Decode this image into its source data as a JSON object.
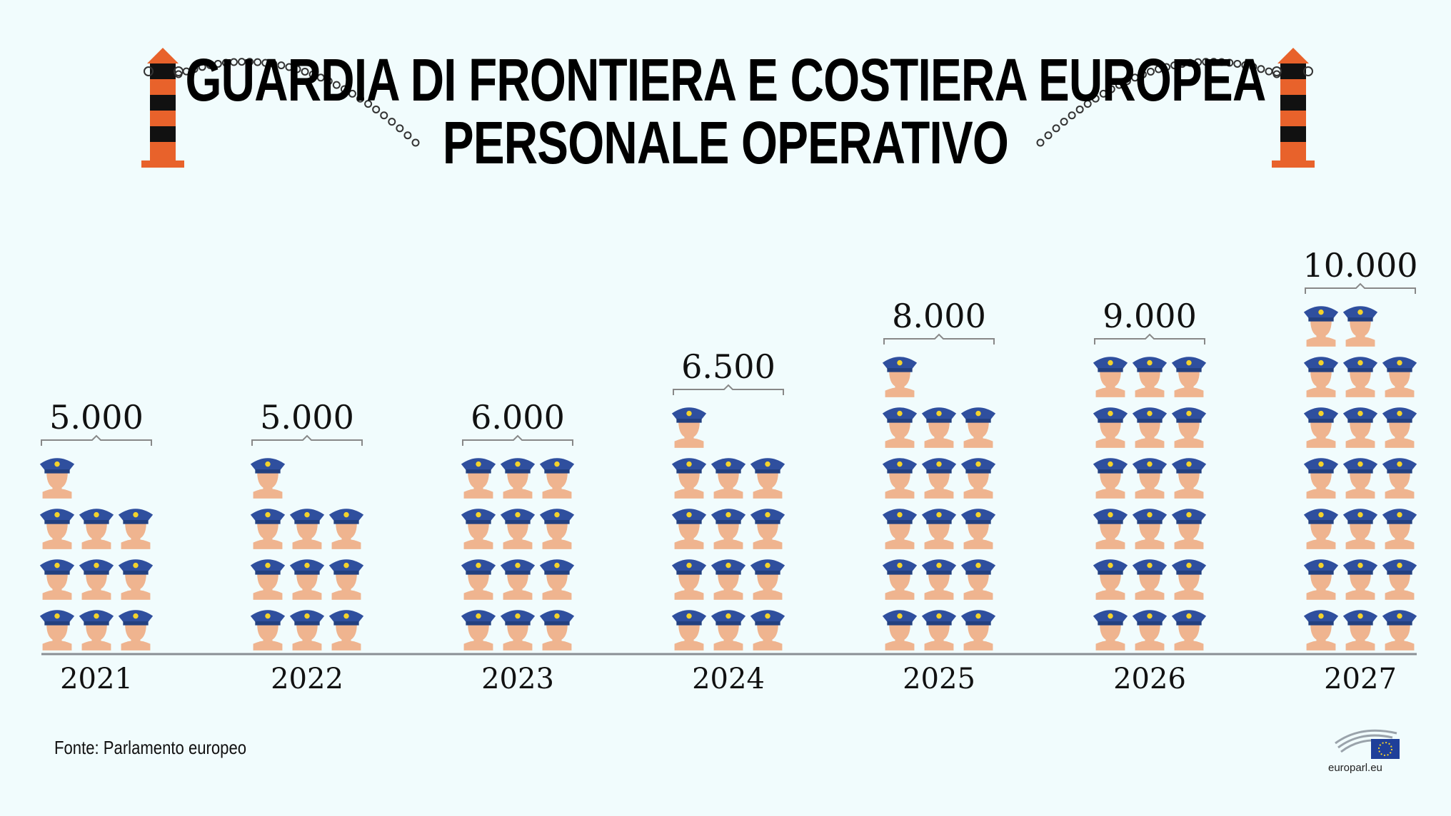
{
  "title_line1": "GUARDIA DI FRONTIERA E COSTIERA EUROPEA",
  "title_line2": "PERSONALE OPERATIVO",
  "source": "Fonte: Parlamento europeo",
  "brand": "europarl.eu",
  "colors": {
    "cap": "#2f4f9e",
    "cap_badge": "#f4d22b",
    "face": "#efb48f",
    "post_orange": "#e8622b",
    "post_black": "#111111",
    "axis": "#8a8f95",
    "bracket": "#888888"
  },
  "icons": {
    "person": "border-guard-icon",
    "border_post": "border-post-icon",
    "logo": "european-parliament-logo"
  },
  "chart_data": {
    "type": "bar",
    "categories": [
      "2021",
      "2022",
      "2023",
      "2024",
      "2025",
      "2026",
      "2027"
    ],
    "values": [
      5000,
      5000,
      6000,
      6500,
      8000,
      9000,
      10000
    ],
    "value_labels": [
      "5.000",
      "5.000",
      "6.000",
      "6.500",
      "8.000",
      "9.000",
      "10.000"
    ],
    "icon_unit": 500,
    "title": "",
    "xlabel": "",
    "ylabel": "",
    "ylim": [
      0,
      10000
    ],
    "grid": false,
    "legend": "none"
  }
}
